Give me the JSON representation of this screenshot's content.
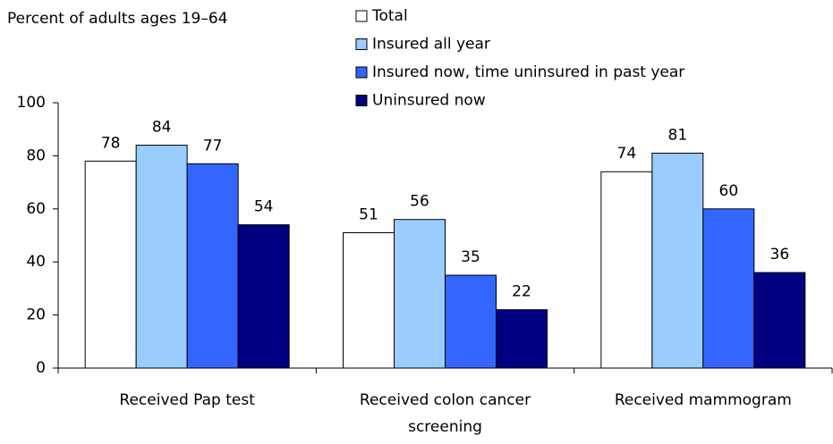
{
  "chart_data": {
    "type": "bar",
    "subtitle": "Percent of adults ages 19–64",
    "categories": [
      "Received Pap test",
      "Received colon cancer screening",
      "Received mammogram"
    ],
    "series": [
      {
        "name": "Total",
        "color": "#ffffff",
        "values": [
          78,
          51,
          74
        ]
      },
      {
        "name": "Insured all year",
        "color": "#99ccff",
        "values": [
          84,
          56,
          81
        ]
      },
      {
        "name": "Insured now, time uninsured in past year",
        "color": "#3366ff",
        "values": [
          77,
          35,
          60
        ]
      },
      {
        "name": "Uninsured now",
        "color": "#000080",
        "values": [
          54,
          22,
          36
        ]
      }
    ],
    "ylim": [
      0,
      100
    ],
    "yticks": [
      0,
      20,
      40,
      60,
      80,
      100
    ],
    "grid": false,
    "legend": "top"
  }
}
